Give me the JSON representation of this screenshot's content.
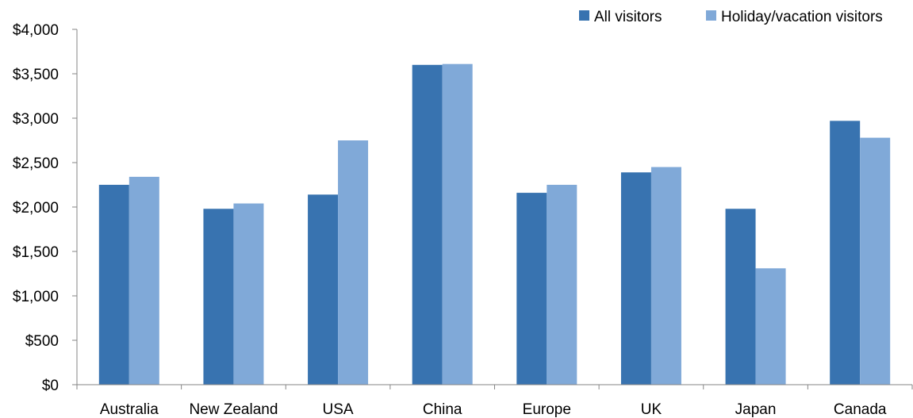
{
  "chart_data": {
    "type": "bar",
    "title": "",
    "xlabel": "",
    "ylabel": "",
    "categories": [
      "Australia",
      "New Zealand",
      "USA",
      "China",
      "Europe",
      "UK",
      "Japan",
      "Canada"
    ],
    "series": [
      {
        "name": "All visitors",
        "color": "#3873B0",
        "values": [
          2250,
          1980,
          2140,
          3600,
          2160,
          2390,
          1980,
          2970
        ]
      },
      {
        "name": "Holiday/vacation visitors",
        "color": "#80A9D8",
        "values": [
          2340,
          2040,
          2750,
          3610,
          2250,
          2450,
          1310,
          2780
        ]
      }
    ],
    "ylim": [
      0,
      4000
    ],
    "yticks": [
      0,
      500,
      1000,
      1500,
      2000,
      2500,
      3000,
      3500,
      4000
    ],
    "ytick_labels": [
      "$0",
      "$500",
      "$1,000",
      "$1,500",
      "$2,000",
      "$2,500",
      "$3,000",
      "$3,500",
      "$4,000"
    ],
    "grid": false,
    "legend_position": "top-right",
    "axis_color": "#868686"
  }
}
